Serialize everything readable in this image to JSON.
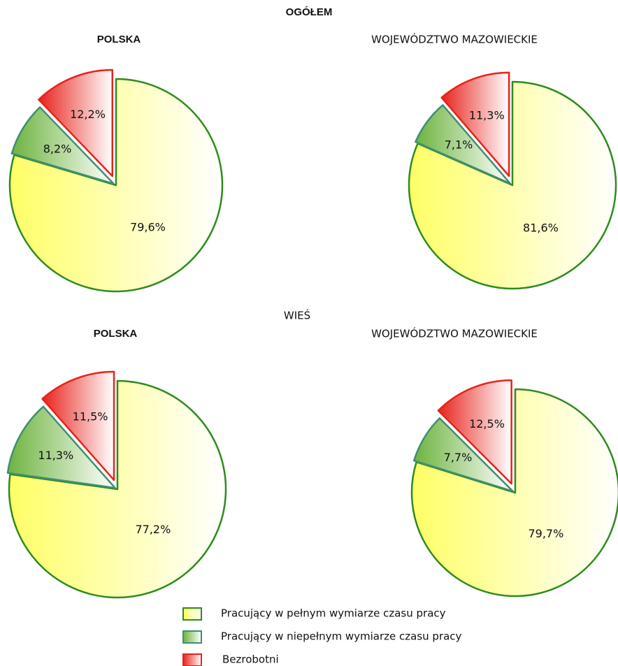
{
  "sections": [
    {
      "title": "OGÓŁEM"
    },
    {
      "title": "WIEŚ"
    }
  ],
  "legend": {
    "categories": [
      "Pracujący w pełnym wymiarze czasu pracy",
      "Pracujący w niepełnym wymiarze czasu pracy",
      "Bezrobotni"
    ],
    "colors": [
      "#ffff66",
      "#6db33f",
      "#e8221c"
    ],
    "edge_colors": [
      "#2e8b1e",
      "#3f8f72",
      "#e8221c"
    ]
  },
  "chart_data": [
    {
      "type": "pie",
      "title": "POLSKA",
      "values": [
        79.6,
        8.2,
        12.2
      ],
      "value_labels": [
        "79,6%",
        "8,2%",
        "12,2%"
      ]
    },
    {
      "type": "pie",
      "title": "WOJEWÓDZTWO MAZOWIECKIE",
      "values": [
        81.6,
        7.1,
        11.3
      ],
      "value_labels": [
        "81,6%",
        "7,1%",
        "11,3%"
      ]
    },
    {
      "type": "pie",
      "title": "POLSKA",
      "values": [
        77.2,
        11.3,
        11.5
      ],
      "value_labels": [
        "77,2%",
        "11,3%",
        "11,5%"
      ]
    },
    {
      "type": "pie",
      "title": "WOJEWÓDZTWO MAZOWIECKIE",
      "values": [
        79.7,
        7.7,
        12.5
      ],
      "value_labels": [
        "79,7%",
        "7,7%",
        "12,5%"
      ]
    }
  ]
}
